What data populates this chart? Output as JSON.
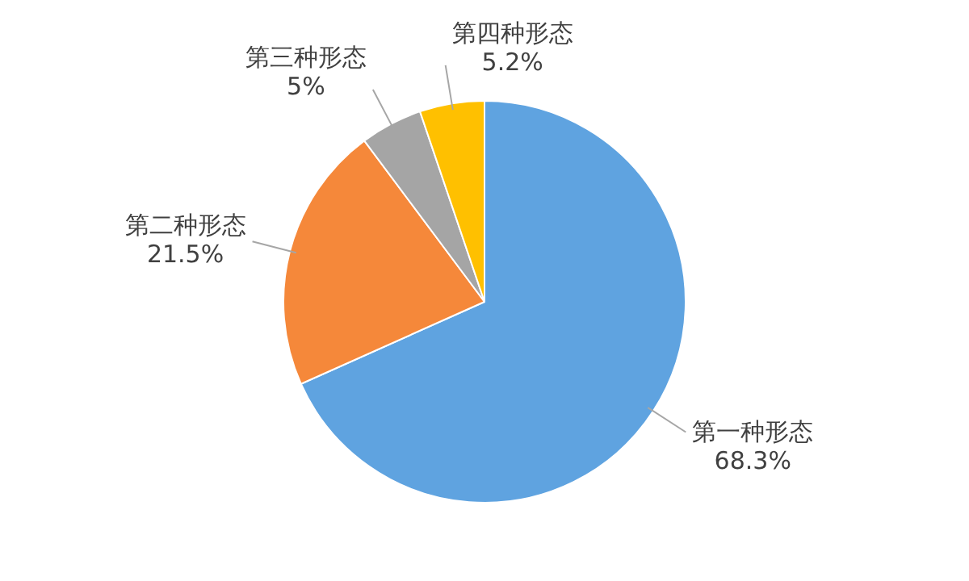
{
  "chart_data": {
    "type": "pie",
    "categories": [
      "第一种形态",
      "第二种形态",
      "第三种形态",
      "第四种形态"
    ],
    "values": [
      68.3,
      21.5,
      5,
      5.2
    ],
    "colors": [
      "#5fa3e0",
      "#f5883a",
      "#a5a5a5",
      "#ffc000"
    ],
    "value_labels": [
      "68.3%",
      "21.5%",
      "5%",
      "5.2%"
    ],
    "legend": false
  }
}
